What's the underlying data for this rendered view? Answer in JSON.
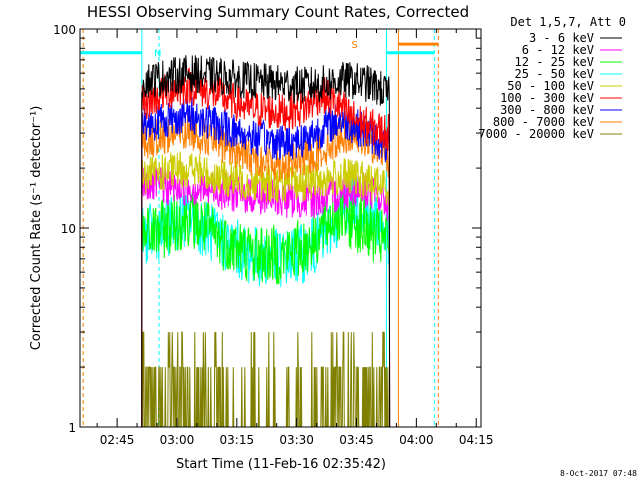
{
  "chart_data": {
    "type": "line",
    "title": "HESSI Observing Summary Count Rates, Corrected",
    "xlabel": "Start Time (11-Feb-16 02:35:42)",
    "ylabel": "Corrected Count Rate (s⁻¹ detector⁻¹)",
    "yscale": "log",
    "ylim": [
      1,
      100
    ],
    "y_ticks": [
      {
        "value": 1,
        "label": "1"
      },
      {
        "value": 10,
        "label": "10"
      },
      {
        "value": 100,
        "label": "100"
      }
    ],
    "xlim_minutes": [
      35.7,
      136.2
    ],
    "x_ticks": [
      {
        "minute": 45,
        "label": "02:45"
      },
      {
        "minute": 60,
        "label": "03:00"
      },
      {
        "minute": 75,
        "label": "03:15"
      },
      {
        "minute": 90,
        "label": "03:30"
      },
      {
        "minute": 105,
        "label": "03:45"
      },
      {
        "minute": 120,
        "label": "04:00"
      },
      {
        "minute": 135,
        "label": "04:15"
      }
    ],
    "legend_title": "Det 1,5,7, Att 0",
    "legend_position": "outside-right",
    "grid": false,
    "data_interval_minutes": [
      51.2,
      125.5
    ],
    "series": [
      {
        "name": "3 - 6 keV",
        "color": "#000000",
        "x": [
          51.2,
          57,
          63,
          70,
          78,
          86,
          92,
          97,
          101,
          104,
          108,
          111,
          113.3
        ],
        "y": [
          55,
          57,
          60,
          58,
          55,
          53,
          52,
          53,
          55,
          55,
          53,
          50,
          46
        ]
      },
      {
        "name": "6 - 12 keV",
        "color": "#ff00ff",
        "x": [
          51.2,
          57,
          63,
          70,
          78,
          86,
          92,
          97,
          101,
          104,
          108,
          111,
          113.3
        ],
        "y": [
          17,
          16,
          16,
          15.5,
          14.5,
          14,
          13.8,
          14,
          15,
          16,
          15.5,
          14,
          13
        ]
      },
      {
        "name": "12 - 25 keV",
        "color": "#00ff00",
        "x": [
          51.2,
          57,
          63,
          70,
          78,
          86,
          92,
          97,
          100,
          103,
          106,
          110,
          113.3
        ],
        "y": [
          9,
          10,
          11.5,
          9,
          7.5,
          7.3,
          8,
          10,
          12,
          11,
          10.5,
          9,
          8.5
        ]
      },
      {
        "name": "25 - 50 keV",
        "color": "#00ffff",
        "x": [
          51.2,
          57,
          63,
          70,
          78,
          86,
          92,
          97,
          101,
          104,
          108,
          111,
          113.3
        ],
        "y": [
          9,
          10,
          11.5,
          9,
          7.3,
          7,
          7.5,
          9,
          12,
          14,
          12,
          10.5,
          9
        ]
      },
      {
        "name": "50 - 100 keV",
        "color": "#cccc00",
        "x": [
          51.2,
          57,
          63,
          70,
          78,
          86,
          92,
          97,
          101,
          104,
          108,
          111,
          113.3
        ],
        "y": [
          18,
          19,
          20,
          18,
          17,
          16.5,
          17,
          17.5,
          18,
          18,
          17,
          16.5,
          16
        ]
      },
      {
        "name": "100 - 300 keV",
        "color": "#ff0000",
        "x": [
          51.2,
          57,
          63,
          70,
          78,
          86,
          92,
          96,
          99,
          103,
          107,
          111,
          113.3
        ],
        "y": [
          42,
          48,
          52,
          47,
          40,
          38,
          40,
          47,
          44,
          37,
          33,
          31,
          30
        ]
      },
      {
        "name": "300 - 800 keV",
        "color": "#0000ff",
        "x": [
          51.2,
          57,
          63,
          70,
          78,
          86,
          92,
          97,
          101,
          104,
          108,
          111,
          113.3
        ],
        "y": [
          33,
          35,
          37,
          33,
          29,
          27,
          28,
          32,
          35,
          33,
          30,
          27,
          25
        ]
      },
      {
        "name": "800 - 7000 keV",
        "color": "#ff8000",
        "x": [
          51.2,
          57,
          63,
          70,
          78,
          86,
          92,
          97,
          101,
          104,
          108,
          111,
          113.3
        ],
        "y": [
          27,
          29,
          31,
          27,
          23,
          21,
          22,
          25,
          29,
          30,
          27,
          24,
          22
        ]
      },
      {
        "name": "7000 - 20000 keV",
        "color": "#808000",
        "x": [
          51.2,
          56,
          61,
          66,
          72,
          80,
          88,
          94,
          98,
          102,
          106,
          110,
          113.3
        ],
        "y": [
          1.5,
          1.7,
          1.8,
          1.6,
          1.2,
          1.1,
          1.1,
          1.2,
          1.7,
          1.9,
          1.8,
          1.6,
          1.3
        ]
      }
    ],
    "flags": [
      {
        "label": "S",
        "color": "#ff8000",
        "segments": [
          [
            115.5,
            125.5
          ]
        ],
        "level": 84
      },
      {
        "label": "N",
        "color": "#00ffff",
        "segments": [
          [
            35.7,
            51.2
          ],
          [
            112.5,
            124.5
          ]
        ],
        "level": 76
      }
    ],
    "vertical_markers": [
      {
        "minute": 36.5,
        "color": "#ff8000",
        "dashed": true
      },
      {
        "minute": 51.2,
        "color": "#00ffff",
        "dashed": false
      },
      {
        "minute": 55.5,
        "color": "#00ffff",
        "dashed": true
      },
      {
        "minute": 112.5,
        "color": "#00ffff",
        "dashed": false
      },
      {
        "minute": 115.5,
        "color": "#ff8000",
        "dashed": false
      },
      {
        "minute": 124.5,
        "color": "#00ffff",
        "dashed": true
      },
      {
        "minute": 125.5,
        "color": "#ff8000",
        "dashed": true
      }
    ],
    "footer_stamp": "8-Oct-2017 07:48"
  }
}
